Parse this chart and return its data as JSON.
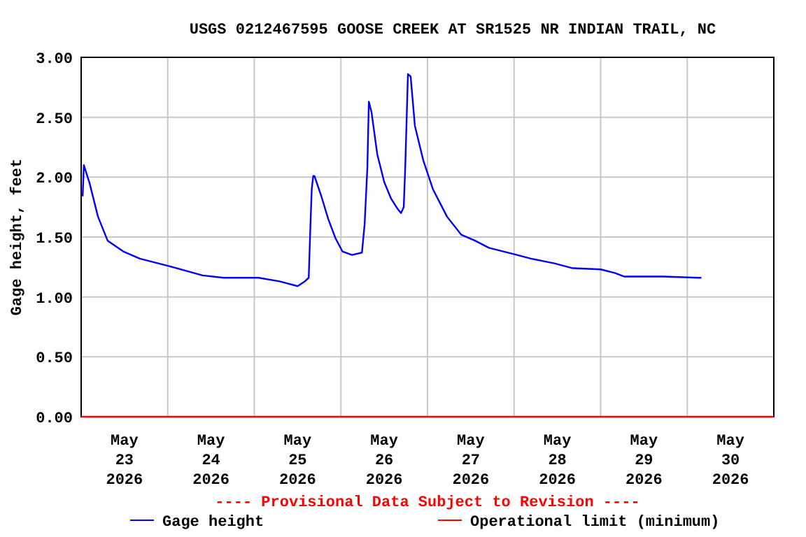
{
  "chart_data": {
    "type": "line",
    "title": "USGS 0212467595 GOOSE CREEK AT SR1525 NR INDIAN TRAIL, NC",
    "ylabel": "Gage height, feet",
    "xlim": [
      "2026-05-23T00:00",
      "2026-05-31T00:00"
    ],
    "xticks": [
      {
        "value": "2026-05-23T00:00",
        "label": null
      },
      {
        "value": "2026-05-23T12:00",
        "label": "May\n23\n2026"
      },
      {
        "value": "2026-05-24T00:00",
        "label": null
      },
      {
        "value": "2026-05-24T12:00",
        "label": "May\n24\n2026"
      },
      {
        "value": "2026-05-25T00:00",
        "label": null
      },
      {
        "value": "2026-05-25T12:00",
        "label": "May\n25\n2026"
      },
      {
        "value": "2026-05-26T00:00",
        "label": null
      },
      {
        "value": "2026-05-26T12:00",
        "label": "May\n26\n2026"
      },
      {
        "value": "2026-05-27T00:00",
        "label": null
      },
      {
        "value": "2026-05-27T12:00",
        "label": "May\n27\n2026"
      },
      {
        "value": "2026-05-28T00:00",
        "label": null
      },
      {
        "value": "2026-05-28T12:00",
        "label": "May\n28\n2026"
      },
      {
        "value": "2026-05-29T00:00",
        "label": null
      },
      {
        "value": "2026-05-29T12:00",
        "label": "May\n29\n2026"
      },
      {
        "value": "2026-05-30T00:00",
        "label": null
      },
      {
        "value": "2026-05-30T12:00",
        "label": "May\n30\n2026"
      },
      {
        "value": "2026-05-31T00:00",
        "label": null
      }
    ],
    "ylim": [
      0,
      3
    ],
    "yticks": [
      {
        "value": 0,
        "label": "0.00"
      },
      {
        "value": 0.5,
        "label": "0.50"
      },
      {
        "value": 1,
        "label": "1.00"
      },
      {
        "value": 1.5,
        "label": "1.50"
      },
      {
        "value": 2,
        "label": "2.00"
      },
      {
        "value": 2.5,
        "label": "2.50"
      },
      {
        "value": 3,
        "label": "3.00"
      }
    ],
    "grid": true,
    "legend": "bottom",
    "marker": "none",
    "line_style": "solid",
    "annotations": [
      "---- Provisional Data Subject to Revision ----"
    ],
    "series": [
      {
        "name": "Gage height",
        "color": "#0000ff",
        "x": [
          "2026-05-23T00:25",
          "2026-05-23T00:45",
          "2026-05-23T02:20",
          "2026-05-23T04:40",
          "2026-05-23T07:20",
          "2026-05-23T11:40",
          "2026-05-23T16:15",
          "2026-05-24T00:00",
          "2026-05-24T09:40",
          "2026-05-24T15:30",
          "2026-05-25T01:10",
          "2026-05-25T07:00",
          "2026-05-25T12:00",
          "2026-05-25T14:00",
          "2026-05-25T15:05",
          "2026-05-25T15:30",
          "2026-05-25T15:55",
          "2026-05-25T16:20",
          "2026-05-25T16:40",
          "2026-05-25T18:35",
          "2026-05-25T20:30",
          "2026-05-25T22:30",
          "2026-05-26T00:25",
          "2026-05-26T03:05",
          "2026-05-26T05:50",
          "2026-05-26T06:35",
          "2026-05-26T07:20",
          "2026-05-26T07:45",
          "2026-05-26T08:30",
          "2026-05-26T10:05",
          "2026-05-26T12:00",
          "2026-05-26T13:55",
          "2026-05-26T15:50",
          "2026-05-26T16:40",
          "2026-05-26T17:25",
          "2026-05-26T17:50",
          "2026-05-26T18:35",
          "2026-05-26T19:20",
          "2026-05-26T20:30",
          "2026-05-26T22:50",
          "2026-05-27T01:30",
          "2026-05-27T05:25",
          "2026-05-27T09:20",
          "2026-05-27T13:10",
          "2026-05-27T17:00",
          "2026-05-28T00:50",
          "2026-05-28T04:40",
          "2026-05-28T11:10",
          "2026-05-28T16:15",
          "2026-05-29T00:00",
          "2026-05-29T03:55",
          "2026-05-29T06:35",
          "2026-05-29T17:25",
          "2026-05-30T03:05",
          "2026-05-30T03:55"
        ],
        "values": [
          1.84,
          2.1,
          1.95,
          1.67,
          1.47,
          1.38,
          1.32,
          1.26,
          1.18,
          1.16,
          1.16,
          1.13,
          1.09,
          1.13,
          1.16,
          1.55,
          1.9,
          2.01,
          2.01,
          1.84,
          1.65,
          1.49,
          1.38,
          1.35,
          1.37,
          1.61,
          2.08,
          2.63,
          2.54,
          2.19,
          1.96,
          1.82,
          1.73,
          1.7,
          1.75,
          2.08,
          2.86,
          2.84,
          2.43,
          2.14,
          1.9,
          1.67,
          1.52,
          1.47,
          1.41,
          1.35,
          1.32,
          1.28,
          1.24,
          1.23,
          1.2,
          1.17,
          1.17,
          1.16,
          1.16
        ]
      },
      {
        "name": "Operational limit (minimum)",
        "color": "#ff0000",
        "x": [
          "2026-05-23T00:00",
          "2026-05-31T00:00"
        ],
        "values": [
          0,
          0
        ]
      }
    ]
  }
}
